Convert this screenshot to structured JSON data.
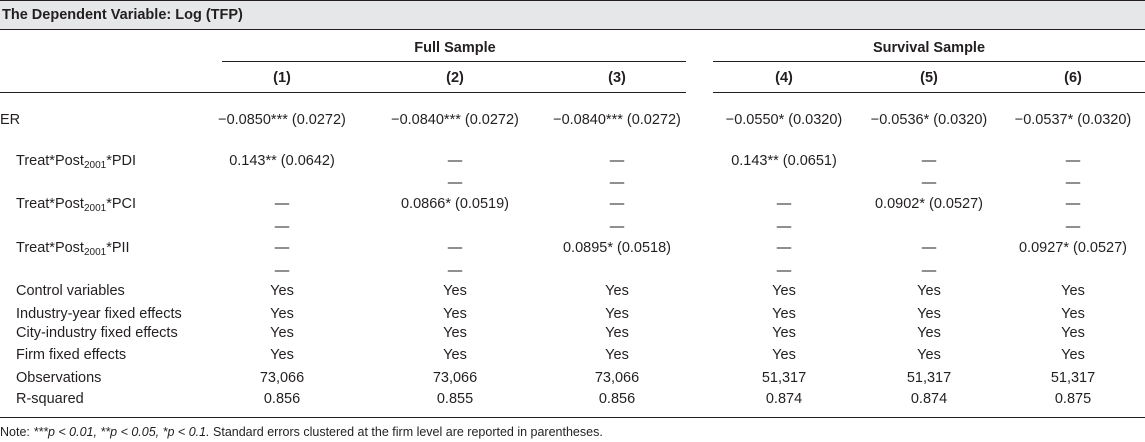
{
  "title": "The Dependent Variable: Log (TFP)",
  "groups": [
    {
      "label": "Full Sample"
    },
    {
      "label": "Survival Sample"
    }
  ],
  "columns": [
    "(1)",
    "(2)",
    "(3)",
    "(4)",
    "(5)",
    "(6)"
  ],
  "rows": [
    {
      "label": "ER",
      "cells": [
        "−0.0850*** (0.0272)",
        "−0.0840*** (0.0272)",
        "−0.0840*** (0.0272)",
        "−0.0550* (0.0320)",
        "−0.0536* (0.0320)",
        "−0.0537* (0.0320)"
      ]
    },
    {
      "label_pre": "Treat*Post",
      "label_sub": "2001",
      "label_post": "*PDI",
      "cells": [
        "0.143** (0.0642)",
        "—",
        "—",
        "0.143** (0.0651)",
        "—",
        "—"
      ]
    },
    {
      "label": "",
      "cells": [
        "",
        "—",
        "—",
        "",
        "—",
        "—"
      ]
    },
    {
      "label_pre": "Treat*Post",
      "label_sub": "2001",
      "label_post": "*PCI",
      "cells": [
        "—",
        "0.0866* (0.0519)",
        "—",
        "—",
        "0.0902* (0.0527)",
        "—"
      ]
    },
    {
      "label": "",
      "cells": [
        "—",
        "",
        "—",
        "—",
        "",
        "—"
      ]
    },
    {
      "label_pre": "Treat*Post",
      "label_sub": "2001",
      "label_post": "*PII",
      "cells": [
        "—",
        "—",
        "0.0895* (0.0518)",
        "—",
        "—",
        "0.0927* (0.0527)"
      ]
    },
    {
      "label": "",
      "cells": [
        "—",
        "—",
        "",
        "—",
        "—",
        ""
      ]
    },
    {
      "label": "Control variables",
      "cells": [
        "Yes",
        "Yes",
        "Yes",
        "Yes",
        "Yes",
        "Yes"
      ]
    },
    {
      "label": "Industry-year fixed effects",
      "cells": [
        "Yes",
        "Yes",
        "Yes",
        "Yes",
        "Yes",
        "Yes"
      ]
    },
    {
      "label": "City-industry fixed effects",
      "cells": [
        "Yes",
        "Yes",
        "Yes",
        "Yes",
        "Yes",
        "Yes"
      ]
    },
    {
      "label": "Firm fixed effects",
      "cells": [
        "Yes",
        "Yes",
        "Yes",
        "Yes",
        "Yes",
        "Yes"
      ]
    },
    {
      "label": "Observations",
      "cells": [
        "73,066",
        "73,066",
        "73,066",
        "51,317",
        "51,317",
        "51,317"
      ]
    },
    {
      "label": "R-squared",
      "cells": [
        "0.856",
        "0.855",
        "0.856",
        "0.874",
        "0.874",
        "0.875"
      ]
    }
  ],
  "note": {
    "prefix": "Note: ",
    "italic": "***p < 0.01, **p < 0.05, *p < 0.1.",
    "rest": " Standard errors clustered at the firm level are reported in parentheses."
  }
}
